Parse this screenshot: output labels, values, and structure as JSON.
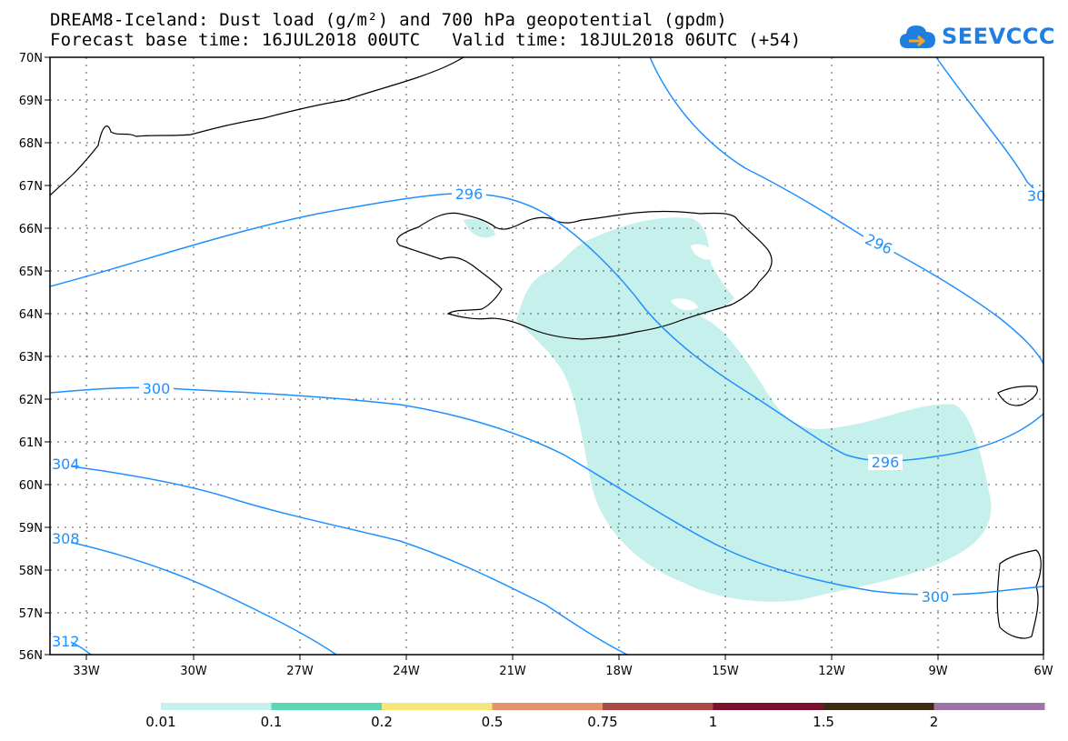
{
  "header": {
    "title_line1": "DREAM8-Iceland: Dust load (g/m²) and 700 hPa geopotential (gpdm)",
    "title_line2": "Forecast base time: 16JUL2018 00UTC   Valid time: 18JUL2018 06UTC (+54)"
  },
  "logo": {
    "text": "SEEVCCC",
    "icon": "cloud-icon",
    "color": "#1f7fe0"
  },
  "map": {
    "lat_labels": [
      "70N",
      "69N",
      "68N",
      "67N",
      "66N",
      "65N",
      "64N",
      "63N",
      "62N",
      "61N",
      "60N",
      "59N",
      "58N",
      "57N",
      "56N"
    ],
    "lon_labels": [
      "33W",
      "30W",
      "27W",
      "24W",
      "21W",
      "18W",
      "15W",
      "12W",
      "9W",
      "6W"
    ],
    "dust_fill_color": "#c5f0eb",
    "contour_color": "#1e90ff",
    "contour_labels": [
      "296",
      "296",
      "296",
      "300",
      "300",
      "304",
      "308",
      "312",
      "30"
    ]
  },
  "colorbar": {
    "ticks": [
      "0.01",
      "0.1",
      "0.2",
      "0.5",
      "0.75",
      "1",
      "1.5",
      "2"
    ],
    "colors": [
      "#c5f0eb",
      "#5ad8b3",
      "#f4e87c",
      "#e5946a",
      "#a74a44",
      "#7b0f2c",
      "#3d2a14",
      "#9c74a6"
    ]
  }
}
